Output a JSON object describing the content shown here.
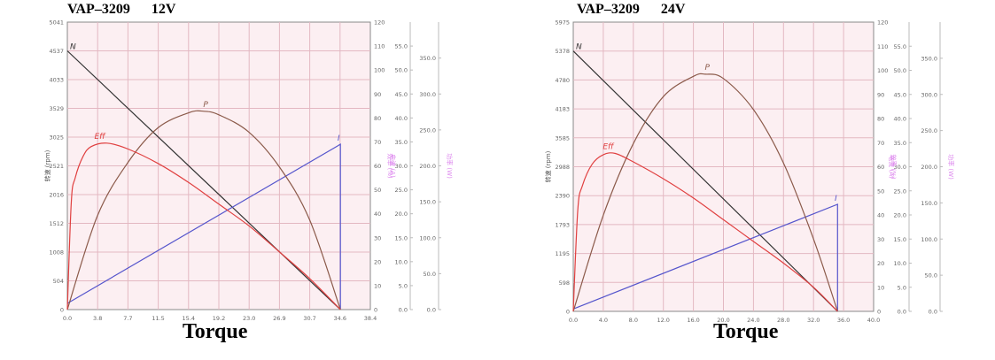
{
  "chart_data": [
    {
      "type": "line",
      "title": "VAP–3209      12V",
      "xlabel": "Torque",
      "ylabel": "转速 (rpm)",
      "y2label": "效率 (%)",
      "y3label": "电流 (A)",
      "y4label": "功率 (W)",
      "xlim": [
        0,
        38.4
      ],
      "x_ticks": [
        "0.0",
        "3.8",
        "7.7",
        "11.5",
        "15.4",
        "19.2",
        "23.0",
        "26.9",
        "30.7",
        "34.6",
        "38.4"
      ],
      "ylim": [
        0,
        5041
      ],
      "y_ticks": [
        "0",
        "504",
        "1008",
        "1512",
        "2016",
        "2521",
        "3025",
        "3529",
        "4033",
        "4537",
        "5041"
      ],
      "y2lim": [
        0,
        120
      ],
      "y2_ticks": [
        "0",
        "10",
        "20",
        "30",
        "40",
        "50",
        "60",
        "70",
        "80",
        "90",
        "100",
        "110",
        "120"
      ],
      "y3lim": [
        0,
        60
      ],
      "y3_ticks": [
        "0.0",
        "5.0",
        "10.0",
        "15.0",
        "20.0",
        "25.0",
        "30.0",
        "35.0",
        "40.0",
        "45.0",
        "50.0",
        "55.0"
      ],
      "y4lim": [
        0,
        400
      ],
      "y4_ticks": [
        "0.0",
        "50.0",
        "100.0",
        "150.0",
        "200.0",
        "250.0",
        "300.0",
        "350.0"
      ],
      "grid": true,
      "series": [
        {
          "name": "N",
          "axis": "y",
          "color": "#333333",
          "x": [
            0,
            34.6
          ],
          "values": [
            4537,
            0
          ]
        },
        {
          "name": "I",
          "axis": "y3",
          "color": "#5555cc",
          "x": [
            0,
            34.6,
            34.6
          ],
          "values": [
            1.3,
            34.5,
            0
          ]
        },
        {
          "name": "P",
          "axis": "y4",
          "color": "#8b5a4a",
          "x": [
            0,
            3.8,
            7.7,
            11.5,
            15.4,
            17.3,
            19.2,
            23.0,
            26.9,
            30.7,
            34.6
          ],
          "values": [
            0,
            130,
            205,
            253,
            274,
            276,
            271,
            247,
            198,
            125,
            0
          ]
        },
        {
          "name": "Eff",
          "axis": "y2",
          "color": "#e04040",
          "x": [
            0,
            0.5,
            1,
            2,
            3,
            5,
            7.7,
            11.5,
            15.4,
            19.2,
            23.0,
            26.9,
            30.7,
            34.6
          ],
          "values": [
            0,
            45,
            55,
            64,
            68,
            69.5,
            67,
            61,
            53,
            44,
            35,
            24,
            13,
            0
          ]
        }
      ]
    },
    {
      "type": "line",
      "title": "VAP–3209      24V",
      "xlabel": "Torque",
      "ylabel": "转速 (rpm)",
      "y2label": "效率 (%)",
      "y3label": "电流 (A)",
      "y4label": "功率 (W)",
      "xlim": [
        0,
        40
      ],
      "x_ticks": [
        "0.0",
        "4.0",
        "8.0",
        "12.0",
        "16.0",
        "20.0",
        "24.0",
        "28.0",
        "32.0",
        "36.0",
        "40.0"
      ],
      "ylim": [
        0,
        5975
      ],
      "y_ticks": [
        "0",
        "598",
        "1195",
        "1793",
        "2390",
        "2988",
        "3585",
        "4183",
        "4780",
        "5378",
        "5975"
      ],
      "y2lim": [
        0,
        120
      ],
      "y2_ticks": [
        "0",
        "10",
        "20",
        "30",
        "40",
        "50",
        "60",
        "70",
        "80",
        "90",
        "100",
        "110",
        "120"
      ],
      "y3lim": [
        0,
        60
      ],
      "y3_ticks": [
        "0.0",
        "5.0",
        "10.0",
        "15.0",
        "20.0",
        "25.0",
        "30.0",
        "35.0",
        "40.0",
        "45.0",
        "50.0",
        "55.0"
      ],
      "y4lim": [
        0,
        400
      ],
      "y4_ticks": [
        "0.0",
        "50.0",
        "100.0",
        "150.0",
        "200.0",
        "250.0",
        "300.0",
        "350.0"
      ],
      "grid": true,
      "series": [
        {
          "name": "N",
          "axis": "y",
          "color": "#333333",
          "x": [
            0,
            35.2
          ],
          "values": [
            5378,
            0
          ]
        },
        {
          "name": "I",
          "axis": "y3",
          "color": "#5555cc",
          "x": [
            0,
            35.2,
            35.2
          ],
          "values": [
            0.5,
            22.2,
            0
          ]
        },
        {
          "name": "P",
          "axis": "y4",
          "color": "#8b5a4a",
          "x": [
            0,
            4,
            8,
            12,
            16,
            17.6,
            20,
            24,
            28,
            32,
            35.2
          ],
          "values": [
            0,
            133,
            232,
            297,
            325,
            328,
            322,
            279,
            205,
            100,
            0
          ]
        },
        {
          "name": "Eff",
          "axis": "y2",
          "color": "#e04040",
          "x": [
            0,
            0.6,
            1.2,
            2.5,
            4,
            5.6,
            8,
            12,
            16,
            20,
            24,
            28,
            32,
            35.2
          ],
          "values": [
            0,
            42,
            52,
            61,
            65,
            65.5,
            62,
            55,
            47,
            38,
            29,
            20,
            10,
            0
          ]
        }
      ]
    }
  ]
}
